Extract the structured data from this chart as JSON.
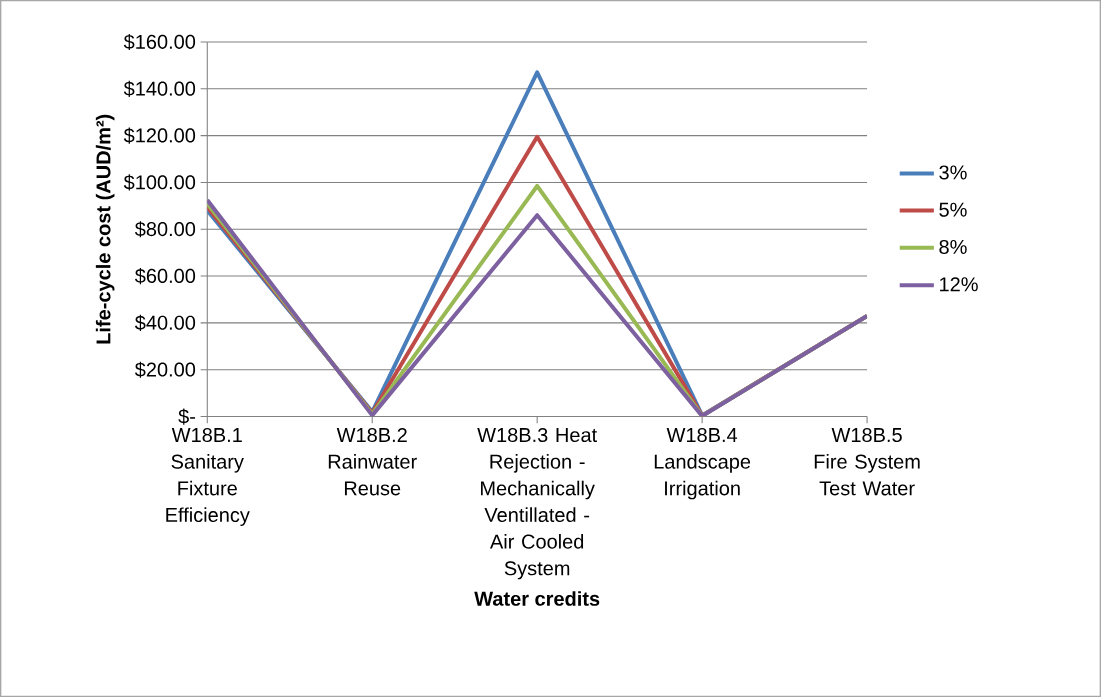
{
  "chart_data": {
    "type": "line",
    "xlabel": "Water credits",
    "ylabel": "Life-cycle cost (AUD/m²)",
    "categories": [
      "W18B.1 Sanitary Fixture Efficiency",
      "W18B.2 Rainwater Reuse",
      "W18B.3 Heat Rejection - Mechanically Ventillated - Air Cooled System",
      "W18B.4 Landscape Irrigation",
      "W18B.5 Fire System Test Water"
    ],
    "series": [
      {
        "name": "3%",
        "color": "#4a7ebb",
        "values": [
          88,
          2,
          147,
          0.5,
          43
        ]
      },
      {
        "name": "5%",
        "color": "#be4b48",
        "values": [
          89.5,
          1.5,
          119.5,
          0.4,
          43
        ]
      },
      {
        "name": "8%",
        "color": "#98b954",
        "values": [
          91,
          1,
          98.5,
          0.3,
          43
        ]
      },
      {
        "name": "12%",
        "color": "#7d60a0",
        "values": [
          92.5,
          0.5,
          86,
          0.2,
          43
        ]
      }
    ],
    "ylim": [
      0,
      160
    ],
    "yticks": [
      {
        "value": 0,
        "label": "$-"
      },
      {
        "value": 20,
        "label": "$20.00"
      },
      {
        "value": 40,
        "label": "$40.00"
      },
      {
        "value": 60,
        "label": "$60.00"
      },
      {
        "value": 80,
        "label": "$80.00"
      },
      {
        "value": 100,
        "label": "$100.00"
      },
      {
        "value": 120,
        "label": "$120.00"
      },
      {
        "value": 140,
        "label": "$140.00"
      },
      {
        "value": 160,
        "label": "$160.00"
      }
    ],
    "grid": "y",
    "legend": "right",
    "marker": "none",
    "line_style": "solid"
  }
}
